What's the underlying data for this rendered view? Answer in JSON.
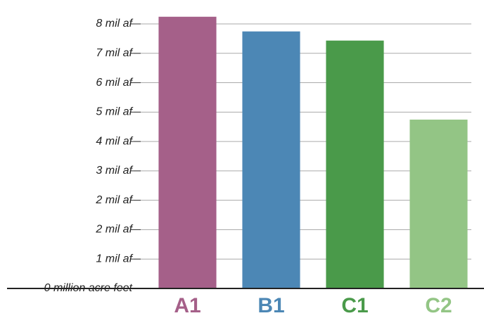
{
  "chart_data": {
    "type": "bar",
    "categories": [
      "A1",
      "B1",
      "C1",
      "C2"
    ],
    "values": [
      8.32,
      7.87,
      7.59,
      5.17
    ],
    "colors": [
      "#a56089",
      "#4c87b5",
      "#4a9a4a",
      "#93c585"
    ],
    "ylim": [
      0,
      8.1
    ],
    "yticks": [
      {
        "value": 0,
        "label": "0 million acre feet"
      },
      {
        "value": 0.9,
        "label": "1 mil af"
      },
      {
        "value": 1.8,
        "label": "2 mil af"
      },
      {
        "value": 2.7,
        "label": "2 mil af"
      },
      {
        "value": 3.6,
        "label": "3 mil af"
      },
      {
        "value": 4.5,
        "label": "4 mil af"
      },
      {
        "value": 5.4,
        "label": "5 mil af"
      },
      {
        "value": 6.3,
        "label": "6 mil af"
      },
      {
        "value": 7.2,
        "label": "7 mil af"
      },
      {
        "value": 8.1,
        "label": "8 mil af"
      }
    ],
    "grid": true
  }
}
